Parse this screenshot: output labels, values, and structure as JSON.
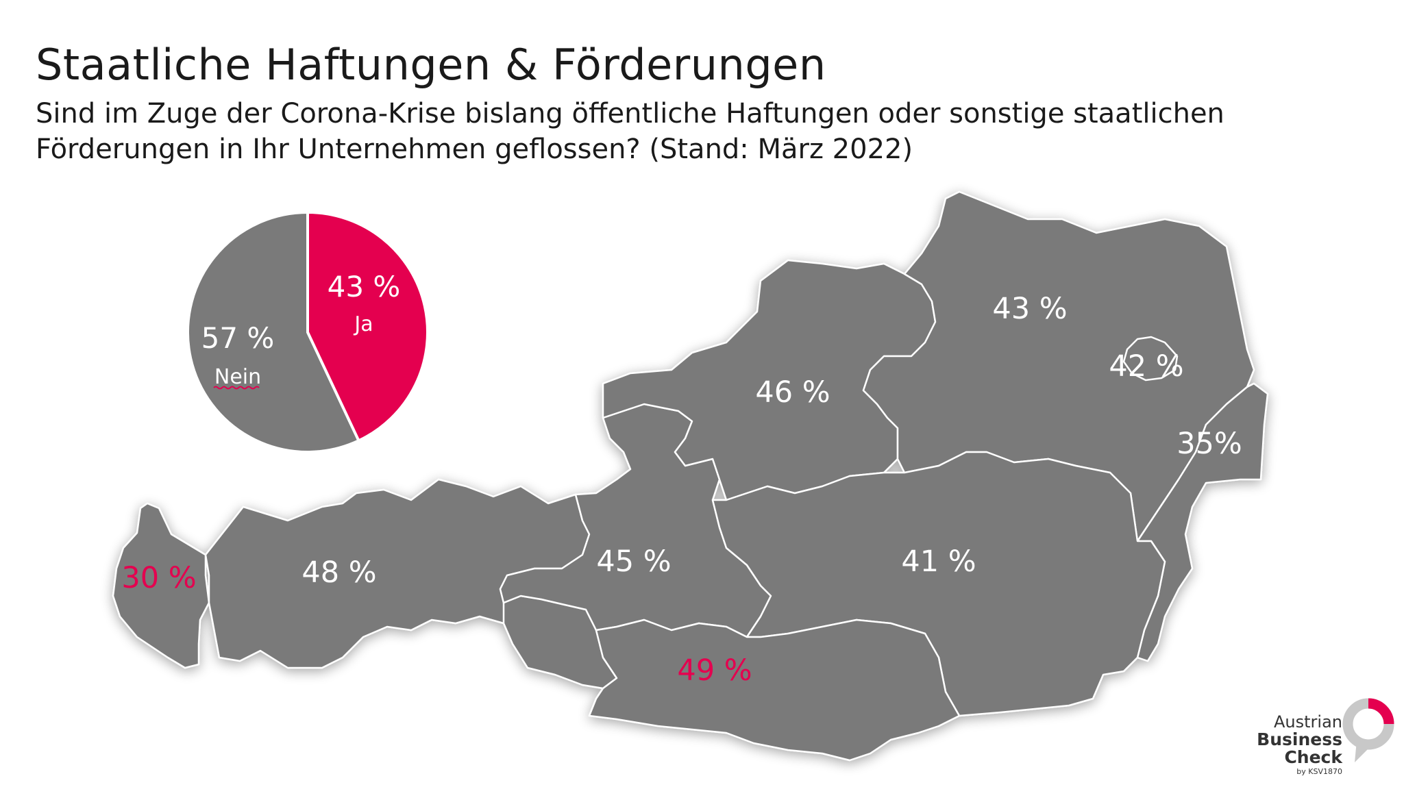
{
  "title": "Staatliche Haftungen & Förderungen",
  "subtitle": "Sind im Zuge der Corona-Krise bislang öffentliche Haftungen oder sonstige staatlichen Förderungen in Ihr Unternehmen geflossen? (Stand: März 2022)",
  "colors": {
    "highlight": "#E4004F",
    "region": "#7a7a7a",
    "text": "#1a1a1a",
    "label": "#ffffff"
  },
  "pie": {
    "yes": {
      "value": 43,
      "percent_label": "43 %",
      "label": "Ja"
    },
    "no": {
      "value": 57,
      "percent_label": "57 %",
      "label": "Nein"
    }
  },
  "regions": [
    {
      "id": "vorarlberg",
      "value_label": "30 %",
      "highlight": true
    },
    {
      "id": "tirol",
      "value_label": "48 %",
      "highlight": false
    },
    {
      "id": "salzburg",
      "value_label": "45 %",
      "highlight": false
    },
    {
      "id": "oberoesterreich",
      "value_label": "46 %",
      "highlight": false
    },
    {
      "id": "niederoesterreich",
      "value_label": "43 %",
      "highlight": false
    },
    {
      "id": "wien",
      "value_label": "42 %",
      "highlight": false
    },
    {
      "id": "burgenland",
      "value_label": "35%",
      "highlight": false
    },
    {
      "id": "steiermark",
      "value_label": "41 %",
      "highlight": false
    },
    {
      "id": "kaernten",
      "value_label": "49 %",
      "highlight": true
    }
  ],
  "brand": {
    "line1": "Austrian",
    "line2": "Business",
    "line3": "Check",
    "line4": "by KSV1870"
  }
}
